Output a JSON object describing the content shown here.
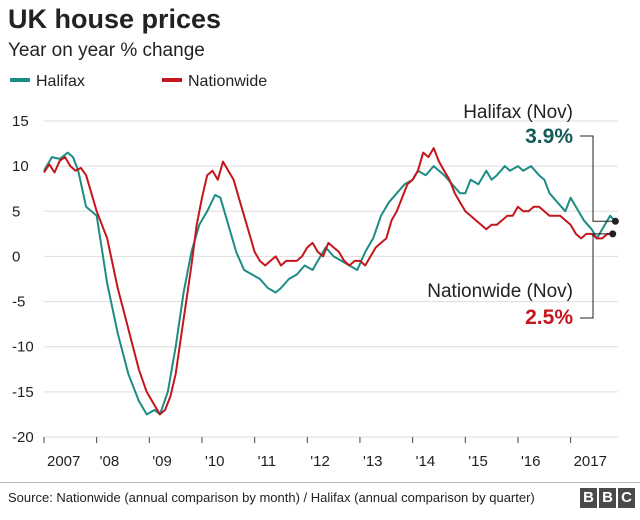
{
  "title": "UK house prices",
  "subtitle": "Year on year % change",
  "source": "Source: Nationwide (annual comparison by month) / Halifax (annual comparison by quarter)",
  "logo_text": "BBC",
  "colors": {
    "halifax": "#1c8c84",
    "nationwide": "#c4161c",
    "halifax_callout": "#145a57",
    "nationwide_callout": "#c4161c",
    "grid": "#dddddd"
  },
  "chart_data": {
    "type": "line",
    "title": "UK house prices",
    "subtitle": "Year on year % change",
    "xlabel": "",
    "ylabel": "",
    "xlim": [
      2007.0,
      2017.9
    ],
    "ylim": [
      -20,
      15
    ],
    "yticks": [
      15,
      10,
      5,
      0,
      -5,
      -10,
      -15,
      -20
    ],
    "ytick_labels": [
      "15",
      "10",
      "5",
      "0",
      "-5",
      "-10",
      "-15",
      "-20"
    ],
    "xticks": [
      2007,
      2008,
      2009,
      2010,
      2011,
      2012,
      2013,
      2014,
      2015,
      2016,
      2017
    ],
    "xtick_labels": [
      "2007",
      "'08",
      "'09",
      "'10",
      "'11",
      "'12",
      "'13",
      "'14",
      "'15",
      "'16",
      "2017"
    ],
    "grid": true,
    "legend": "top-left",
    "series": [
      {
        "name": "Halifax",
        "color": "#1c8c84",
        "x": [
          2007.0,
          2007.15,
          2007.3,
          2007.45,
          2007.55,
          2007.65,
          2007.8,
          2008.0,
          2008.2,
          2008.4,
          2008.6,
          2008.8,
          2008.95,
          2009.1,
          2009.2,
          2009.35,
          2009.5,
          2009.65,
          2009.8,
          2009.95,
          2010.1,
          2010.25,
          2010.35,
          2010.5,
          2010.65,
          2010.8,
          2010.95,
          2011.1,
          2011.25,
          2011.4,
          2011.5,
          2011.65,
          2011.8,
          2011.95,
          2012.1,
          2012.2,
          2012.35,
          2012.5,
          2012.65,
          2012.8,
          2012.95,
          2013.1,
          2013.25,
          2013.4,
          2013.55,
          2013.7,
          2013.85,
          2014.0,
          2014.1,
          2014.25,
          2014.4,
          2014.5,
          2014.6,
          2014.75,
          2014.9,
          2015.0,
          2015.1,
          2015.25,
          2015.4,
          2015.5,
          2015.6,
          2015.75,
          2015.85,
          2016.0,
          2016.1,
          2016.25,
          2016.4,
          2016.5,
          2016.6,
          2016.75,
          2016.9,
          2017.0,
          2017.1,
          2017.25,
          2017.4,
          2017.5,
          2017.6,
          2017.75,
          2017.85
        ],
        "y": [
          9.5,
          11.0,
          10.8,
          11.5,
          11.0,
          9.5,
          5.5,
          4.5,
          -3.0,
          -8.5,
          -13.0,
          -16.0,
          -17.5,
          -17.0,
          -17.5,
          -15.0,
          -10.0,
          -4.0,
          0.5,
          3.5,
          5.0,
          6.8,
          6.5,
          3.5,
          0.5,
          -1.5,
          -2.0,
          -2.5,
          -3.5,
          -4.0,
          -3.5,
          -2.5,
          -2.0,
          -1.0,
          -1.5,
          -0.5,
          1.0,
          0.0,
          -0.5,
          -1.0,
          -1.5,
          0.5,
          2.0,
          4.5,
          6.0,
          7.0,
          8.0,
          8.5,
          9.5,
          9.0,
          10.0,
          9.5,
          9.0,
          8.0,
          7.0,
          7.0,
          8.5,
          8.0,
          9.5,
          8.5,
          9.0,
          10.0,
          9.5,
          10.0,
          9.5,
          10.0,
          9.0,
          8.5,
          7.0,
          6.0,
          5.0,
          6.5,
          5.5,
          4.0,
          3.0,
          2.0,
          3.0,
          4.5,
          3.9
        ]
      },
      {
        "name": "Nationwide",
        "color": "#c4161c",
        "x": [
          2007.0,
          2007.1,
          2007.2,
          2007.3,
          2007.4,
          2007.5,
          2007.6,
          2007.7,
          2007.8,
          2008.0,
          2008.2,
          2008.4,
          2008.6,
          2008.8,
          2008.95,
          2009.1,
          2009.2,
          2009.3,
          2009.4,
          2009.5,
          2009.6,
          2009.7,
          2009.8,
          2009.9,
          2010.0,
          2010.1,
          2010.2,
          2010.3,
          2010.4,
          2010.5,
          2010.6,
          2010.7,
          2010.8,
          2010.9,
          2011.0,
          2011.1,
          2011.2,
          2011.3,
          2011.4,
          2011.5,
          2011.6,
          2011.7,
          2011.8,
          2011.9,
          2012.0,
          2012.1,
          2012.2,
          2012.3,
          2012.4,
          2012.5,
          2012.6,
          2012.7,
          2012.8,
          2012.9,
          2013.0,
          2013.1,
          2013.2,
          2013.3,
          2013.4,
          2013.5,
          2013.6,
          2013.7,
          2013.8,
          2013.9,
          2014.0,
          2014.1,
          2014.2,
          2014.3,
          2014.4,
          2014.5,
          2014.6,
          2014.7,
          2014.8,
          2014.9,
          2015.0,
          2015.1,
          2015.2,
          2015.3,
          2015.4,
          2015.5,
          2015.6,
          2015.7,
          2015.8,
          2015.9,
          2016.0,
          2016.1,
          2016.2,
          2016.3,
          2016.4,
          2016.5,
          2016.6,
          2016.7,
          2016.8,
          2016.9,
          2017.0,
          2017.1,
          2017.2,
          2017.3,
          2017.4,
          2017.5,
          2017.6,
          2017.7,
          2017.8
        ],
        "y": [
          9.3,
          10.2,
          9.3,
          10.6,
          11.0,
          10.0,
          9.5,
          9.8,
          9.0,
          5.0,
          2.0,
          -3.5,
          -8.0,
          -12.5,
          -15.0,
          -16.5,
          -17.5,
          -17.0,
          -15.5,
          -13.0,
          -9.0,
          -5.0,
          -1.0,
          3.5,
          6.5,
          9.0,
          9.5,
          8.5,
          10.5,
          9.5,
          8.5,
          6.5,
          4.5,
          2.5,
          0.5,
          -0.5,
          -1.0,
          -0.5,
          0.0,
          -1.0,
          -0.5,
          -0.5,
          -0.5,
          0.0,
          1.0,
          1.5,
          0.5,
          0.0,
          1.5,
          1.0,
          0.5,
          -0.5,
          -1.0,
          -0.5,
          -0.5,
          -1.0,
          0.0,
          1.0,
          1.5,
          2.0,
          4.0,
          5.0,
          6.5,
          8.0,
          8.5,
          9.5,
          11.5,
          11.0,
          12.0,
          10.5,
          9.5,
          8.5,
          7.0,
          6.0,
          5.0,
          4.5,
          4.0,
          3.5,
          3.0,
          3.5,
          3.5,
          4.0,
          4.5,
          4.5,
          5.5,
          5.0,
          5.0,
          5.5,
          5.5,
          5.0,
          4.5,
          4.5,
          4.5,
          4.0,
          3.5,
          2.5,
          2.0,
          2.5,
          2.5,
          2.0,
          2.0,
          2.5,
          2.5
        ]
      }
    ],
    "annotations": [
      {
        "label": "Halifax (Nov)",
        "value": "3.9%",
        "series": "Halifax"
      },
      {
        "label": "Nationwide (Nov)",
        "value": "2.5%",
        "series": "Nationwide"
      }
    ]
  }
}
